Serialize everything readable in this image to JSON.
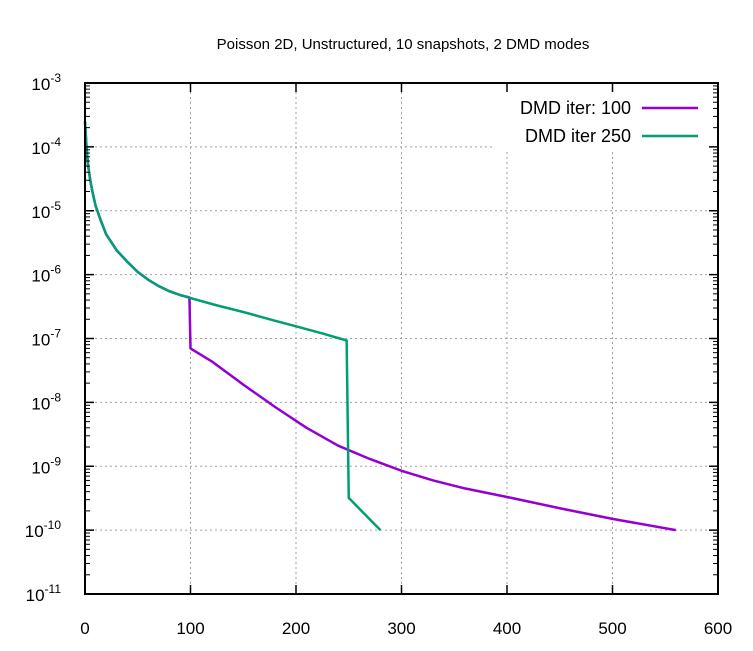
{
  "chart_data": {
    "type": "line",
    "title": "Poisson 2D, Unstructured, 10 snapshots, 2 DMD modes",
    "xlabel": "",
    "ylabel": "",
    "xlim": [
      0,
      600
    ],
    "ylim": [
      1e-11,
      0.001
    ],
    "ylog": true,
    "grid": true,
    "legend": "top-right",
    "x_ticks": [
      {
        "value": 0,
        "label": "0"
      },
      {
        "value": 100,
        "label": "100"
      },
      {
        "value": 200,
        "label": "200"
      },
      {
        "value": 300,
        "label": "300"
      },
      {
        "value": 400,
        "label": "400"
      },
      {
        "value": 500,
        "label": "500"
      },
      {
        "value": 600,
        "label": "600"
      }
    ],
    "y_ticks": [
      {
        "value": 1e-11,
        "base": "10",
        "exp": "-11"
      },
      {
        "value": 1e-10,
        "base": "10",
        "exp": "-10"
      },
      {
        "value": 1e-09,
        "base": "10",
        "exp": "-9"
      },
      {
        "value": 1e-08,
        "base": "10",
        "exp": "-8"
      },
      {
        "value": 1e-07,
        "base": "10",
        "exp": "-7"
      },
      {
        "value": 1e-06,
        "base": "10",
        "exp": "-6"
      },
      {
        "value": 1e-05,
        "base": "10",
        "exp": "-5"
      },
      {
        "value": 0.0001,
        "base": "10",
        "exp": "-4"
      },
      {
        "value": 0.001,
        "base": "10",
        "exp": "-3"
      }
    ],
    "series": [
      {
        "name": "DMD iter: 100",
        "color": "#9400d3",
        "points": [
          [
            0,
            0.00025
          ],
          [
            1,
            0.00013
          ],
          [
            2,
            7.5e-05
          ],
          [
            3,
            5e-05
          ],
          [
            5,
            3e-05
          ],
          [
            7,
            2e-05
          ],
          [
            10,
            1.2e-05
          ],
          [
            15,
            7e-06
          ],
          [
            20,
            4.3e-06
          ],
          [
            30,
            2.4e-06
          ],
          [
            40,
            1.6e-06
          ],
          [
            50,
            1.1e-06
          ],
          [
            60,
            8.3e-07
          ],
          [
            70,
            6.6e-07
          ],
          [
            80,
            5.5e-07
          ],
          [
            90,
            4.8e-07
          ],
          [
            99,
            4.4e-07
          ],
          [
            100,
            7e-08
          ],
          [
            120,
            4.4e-08
          ],
          [
            150,
            1.9e-08
          ],
          [
            180,
            8.5e-09
          ],
          [
            210,
            4e-09
          ],
          [
            240,
            2.1e-09
          ],
          [
            270,
            1.3e-09
          ],
          [
            300,
            8.5e-10
          ],
          [
            330,
            6e-10
          ],
          [
            360,
            4.5e-10
          ],
          [
            400,
            3.3e-10
          ],
          [
            450,
            2.2e-10
          ],
          [
            500,
            1.5e-10
          ],
          [
            560,
            1e-10
          ]
        ]
      },
      {
        "name": "DMD iter 250",
        "color": "#009e73",
        "points": [
          [
            0,
            0.00025
          ],
          [
            1,
            0.00013
          ],
          [
            2,
            7.5e-05
          ],
          [
            3,
            5e-05
          ],
          [
            5,
            3e-05
          ],
          [
            7,
            2e-05
          ],
          [
            10,
            1.2e-05
          ],
          [
            15,
            7e-06
          ],
          [
            20,
            4.3e-06
          ],
          [
            30,
            2.4e-06
          ],
          [
            40,
            1.6e-06
          ],
          [
            50,
            1.1e-06
          ],
          [
            60,
            8.3e-07
          ],
          [
            70,
            6.6e-07
          ],
          [
            80,
            5.5e-07
          ],
          [
            90,
            4.8e-07
          ],
          [
            100,
            4.3e-07
          ],
          [
            125,
            3.3e-07
          ],
          [
            150,
            2.6e-07
          ],
          [
            175,
            2e-07
          ],
          [
            200,
            1.55e-07
          ],
          [
            225,
            1.2e-07
          ],
          [
            248,
            9.3e-08
          ],
          [
            250,
            3.2e-10
          ],
          [
            280,
            1e-10
          ]
        ]
      }
    ]
  }
}
